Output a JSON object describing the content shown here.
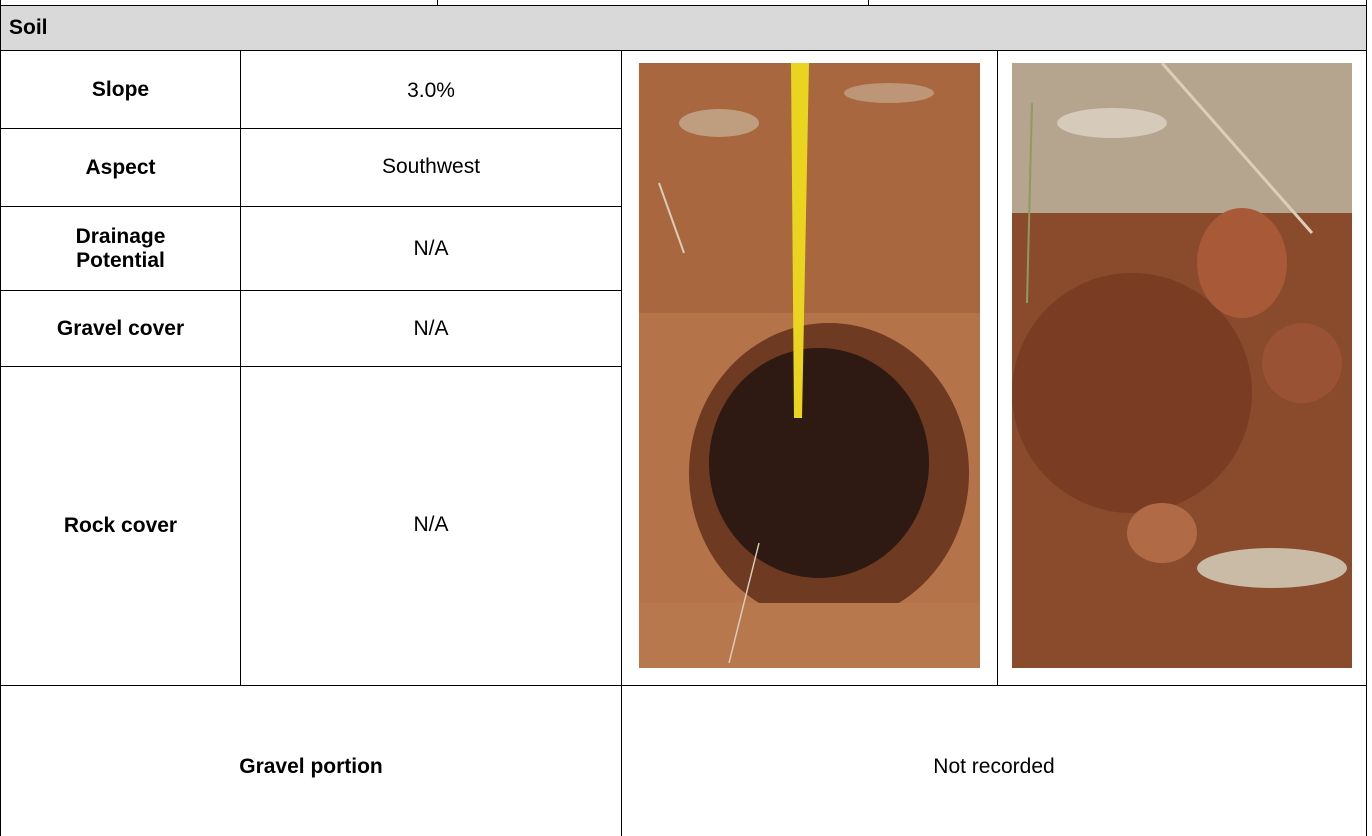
{
  "header": {
    "title": "Soil"
  },
  "rows": [
    {
      "label": "Slope",
      "value": "3.0%"
    },
    {
      "label": "Aspect",
      "value": "Southwest"
    },
    {
      "label": "Drainage Potential",
      "value": "N/A"
    },
    {
      "label": "Gravel cover",
      "value": "N/A"
    },
    {
      "label": "Rock cover",
      "value": "N/A"
    }
  ],
  "gravel_portion": {
    "label": "Gravel portion",
    "value": "Not recorded"
  }
}
